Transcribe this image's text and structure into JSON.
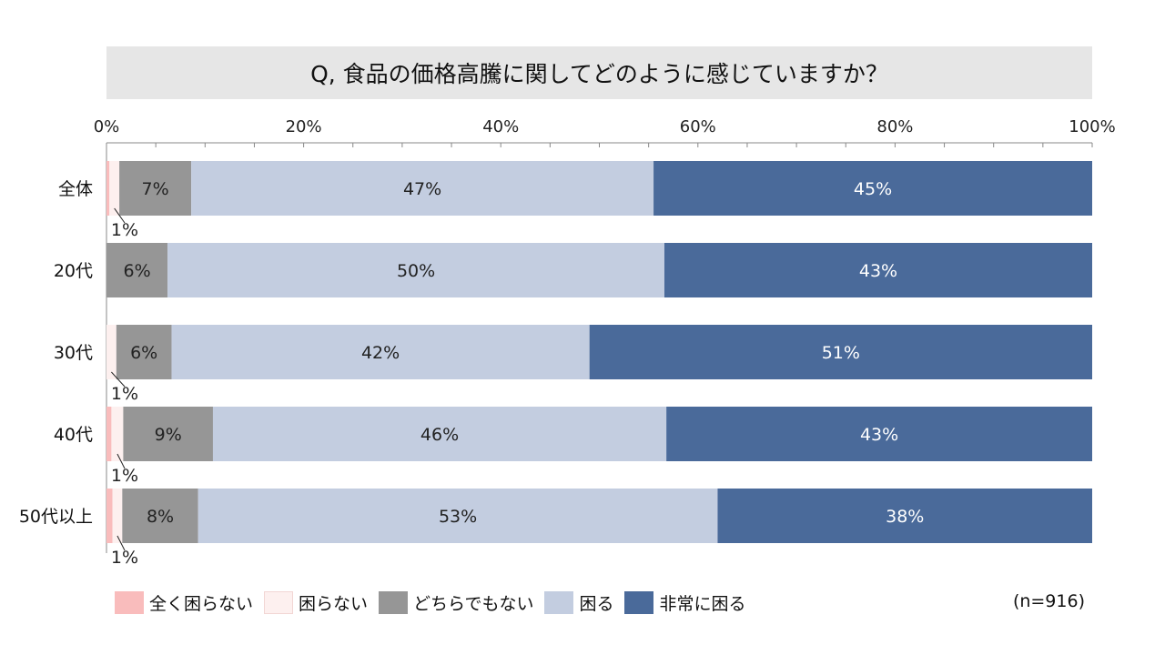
{
  "chart_data": {
    "type": "bar",
    "orientation": "horizontal",
    "stacked": true,
    "percent": true,
    "title": "Q, 食品の価格高騰に関してどのように感じていますか？",
    "categories": [
      "全体",
      "20代",
      "30代",
      "40代",
      "50代以上"
    ],
    "xlim": [
      0,
      100
    ],
    "xticks": [
      "0%",
      "20%",
      "40%",
      "60%",
      "80%",
      "100%"
    ],
    "series": [
      {
        "name": "全く困らない",
        "color": "#f9bcbc",
        "values": [
          0.3,
          0,
          0,
          0.5,
          0.6
        ],
        "labels": [
          "",
          "",
          "",
          "",
          ""
        ]
      },
      {
        "name": "困らない",
        "color": "#fdf0ef",
        "values": [
          1,
          0,
          1,
          1.2,
          1
        ],
        "labels": [
          "1%",
          "",
          "1%",
          "1%",
          "1%"
        ]
      },
      {
        "name": "どちらでもない",
        "color": "#969696",
        "values": [
          7.3,
          6.2,
          5.6,
          9.1,
          7.7
        ],
        "labels": [
          "7%",
          "6%",
          "6%",
          "9%",
          "8%"
        ]
      },
      {
        "name": "困る",
        "color": "#c3cde0",
        "values": [
          46.9,
          50.4,
          42.4,
          46,
          52.7
        ],
        "labels": [
          "47%",
          "50%",
          "42%",
          "46%",
          "53%"
        ]
      },
      {
        "name": "非常に困る",
        "color": "#4a6a9a",
        "values": [
          44.5,
          43.4,
          51,
          43.2,
          38
        ],
        "labels": [
          "45%",
          "43%",
          "51%",
          "43%",
          "38%"
        ]
      }
    ],
    "legend_position": "bottom-left",
    "note": "(n=916)",
    "grid": false
  }
}
